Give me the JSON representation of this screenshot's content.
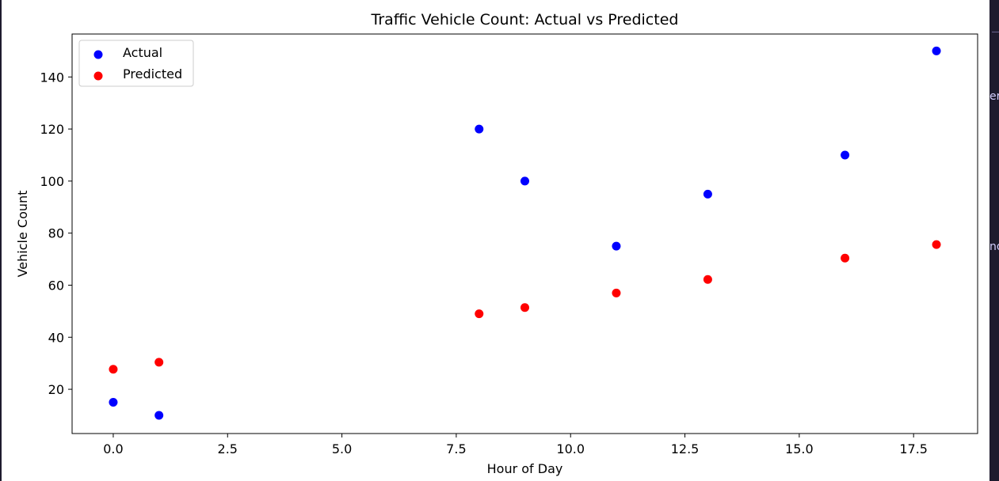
{
  "chart_data": {
    "type": "scatter",
    "title": "Traffic Vehicle Count: Actual vs Predicted",
    "xlabel": "Hour of Day",
    "ylabel": "Vehicle Count",
    "xlim": [
      -0.9,
      18.9
    ],
    "ylim": [
      3.0,
      156.5
    ],
    "xticks": [
      0.0,
      2.5,
      5.0,
      7.5,
      10.0,
      12.5,
      15.0,
      17.5
    ],
    "xtick_labels": [
      "0.0",
      "2.5",
      "5.0",
      "7.5",
      "10.0",
      "12.5",
      "15.0",
      "17.5"
    ],
    "yticks": [
      20,
      40,
      60,
      80,
      100,
      120,
      140
    ],
    "ytick_labels": [
      "20",
      "40",
      "60",
      "80",
      "100",
      "120",
      "140"
    ],
    "grid": false,
    "legend_position": "top-left",
    "series": [
      {
        "name": "Actual",
        "color": "#0000ff",
        "x": [
          0,
          1,
          8,
          9,
          11,
          13,
          16,
          18
        ],
        "y": [
          15,
          10,
          120,
          100,
          75,
          95,
          110,
          150
        ]
      },
      {
        "name": "Predicted",
        "color": "#ff0000",
        "x": [
          0,
          1,
          8,
          9,
          11,
          13,
          16,
          18
        ],
        "y": [
          27.7,
          30.4,
          49.0,
          51.4,
          57.0,
          62.2,
          70.4,
          75.6
        ]
      }
    ]
  },
  "edge_fragments": [
    "er",
    "nd"
  ]
}
